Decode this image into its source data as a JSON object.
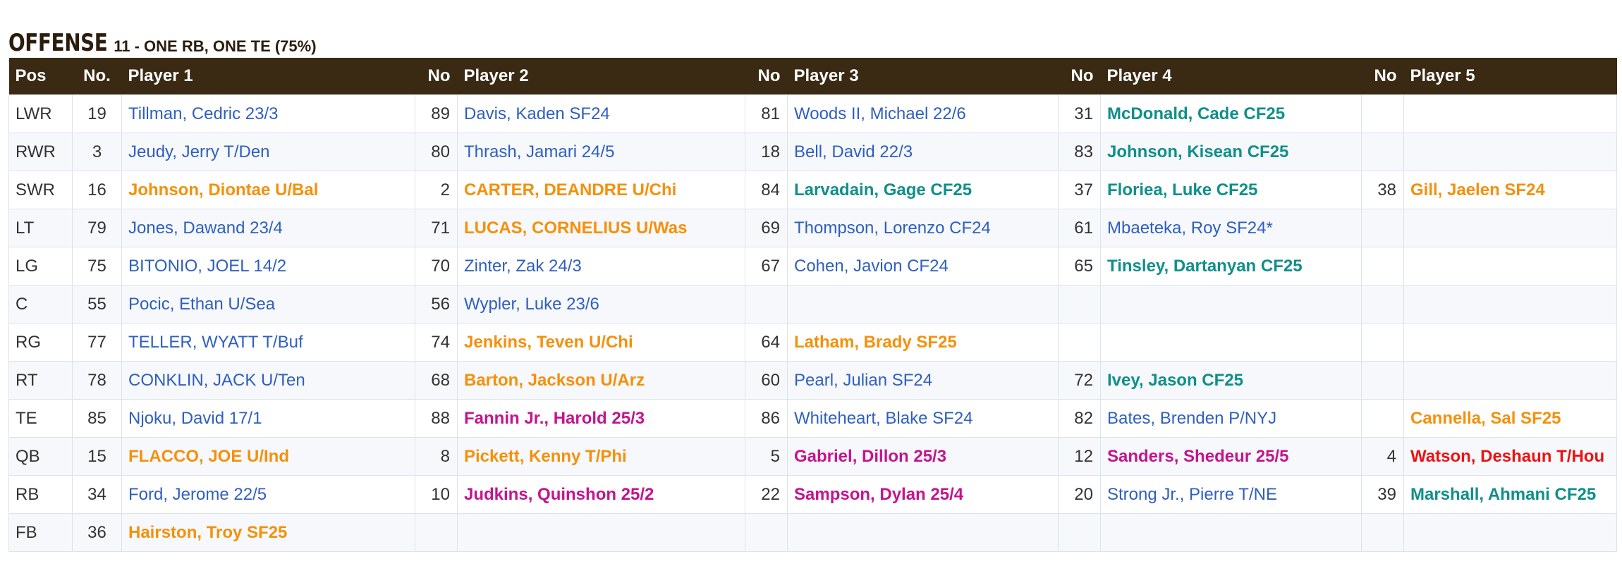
{
  "heading": {
    "title": "OFFENSE",
    "subtitle": "11 - ONE RB, ONE TE (75%)"
  },
  "colors": {
    "header_bg": "#3a2a14",
    "blue": "#2f5fbf",
    "orange": "#f5900a",
    "teal": "#0f8f8a",
    "magenta": "#c4148f",
    "red": "#ec1212"
  },
  "columns": [
    "Pos",
    "No.",
    "Player 1",
    "No",
    "Player 2",
    "No",
    "Player 3",
    "No",
    "Player 4",
    "No",
    "Player 5"
  ],
  "rows": [
    {
      "pos": "LWR",
      "players": [
        {
          "no": "19",
          "name": "Tillman, Cedric 23/3",
          "color": "blue"
        },
        {
          "no": "89",
          "name": "Davis, Kaden SF24",
          "color": "blue"
        },
        {
          "no": "81",
          "name": "Woods II, Michael 22/6",
          "color": "blue"
        },
        {
          "no": "31",
          "name": "McDonald, Cade CF25",
          "color": "teal"
        },
        {
          "no": "",
          "name": "",
          "color": "blue"
        }
      ]
    },
    {
      "pos": "RWR",
      "players": [
        {
          "no": "3",
          "name": "Jeudy, Jerry T/Den",
          "color": "blue"
        },
        {
          "no": "80",
          "name": "Thrash, Jamari 24/5",
          "color": "blue"
        },
        {
          "no": "18",
          "name": "Bell, David 22/3",
          "color": "blue"
        },
        {
          "no": "83",
          "name": "Johnson, Kisean CF25",
          "color": "teal"
        },
        {
          "no": "",
          "name": "",
          "color": "blue"
        }
      ]
    },
    {
      "pos": "SWR",
      "players": [
        {
          "no": "16",
          "name": "Johnson, Diontae U/Bal",
          "color": "orange"
        },
        {
          "no": "2",
          "name": "CARTER, DEANDRE U/Chi",
          "color": "orange"
        },
        {
          "no": "84",
          "name": "Larvadain, Gage CF25",
          "color": "teal"
        },
        {
          "no": "37",
          "name": "Floriea, Luke CF25",
          "color": "teal"
        },
        {
          "no": "38",
          "name": "Gill, Jaelen SF24",
          "color": "orange"
        }
      ]
    },
    {
      "pos": "LT",
      "players": [
        {
          "no": "79",
          "name": "Jones, Dawand 23/4",
          "color": "blue"
        },
        {
          "no": "71",
          "name": "LUCAS, CORNELIUS U/Was",
          "color": "orange"
        },
        {
          "no": "69",
          "name": "Thompson, Lorenzo CF24",
          "color": "blue"
        },
        {
          "no": "61",
          "name": "Mbaeteka, Roy SF24*",
          "color": "blue"
        },
        {
          "no": "",
          "name": "",
          "color": "blue"
        }
      ]
    },
    {
      "pos": "LG",
      "players": [
        {
          "no": "75",
          "name": "BITONIO, JOEL 14/2",
          "color": "blue"
        },
        {
          "no": "70",
          "name": "Zinter, Zak 24/3",
          "color": "blue"
        },
        {
          "no": "67",
          "name": "Cohen, Javion CF24",
          "color": "blue"
        },
        {
          "no": "65",
          "name": "Tinsley, Dartanyan CF25",
          "color": "teal"
        },
        {
          "no": "",
          "name": "",
          "color": "blue"
        }
      ]
    },
    {
      "pos": "C",
      "players": [
        {
          "no": "55",
          "name": "Pocic, Ethan U/Sea",
          "color": "blue"
        },
        {
          "no": "56",
          "name": "Wypler, Luke 23/6",
          "color": "blue"
        },
        {
          "no": "",
          "name": "",
          "color": "blue"
        },
        {
          "no": "",
          "name": "",
          "color": "blue"
        },
        {
          "no": "",
          "name": "",
          "color": "blue"
        }
      ]
    },
    {
      "pos": "RG",
      "players": [
        {
          "no": "77",
          "name": "TELLER, WYATT T/Buf",
          "color": "blue"
        },
        {
          "no": "74",
          "name": "Jenkins, Teven U/Chi",
          "color": "orange"
        },
        {
          "no": "64",
          "name": "Latham, Brady SF25",
          "color": "orange"
        },
        {
          "no": "",
          "name": "",
          "color": "blue"
        },
        {
          "no": "",
          "name": "",
          "color": "blue"
        }
      ]
    },
    {
      "pos": "RT",
      "players": [
        {
          "no": "78",
          "name": "CONKLIN, JACK U/Ten",
          "color": "blue"
        },
        {
          "no": "68",
          "name": "Barton, Jackson U/Arz",
          "color": "orange"
        },
        {
          "no": "60",
          "name": "Pearl, Julian SF24",
          "color": "blue"
        },
        {
          "no": "72",
          "name": "Ivey, Jason CF25",
          "color": "teal"
        },
        {
          "no": "",
          "name": "",
          "color": "blue"
        }
      ]
    },
    {
      "pos": "TE",
      "players": [
        {
          "no": "85",
          "name": "Njoku, David 17/1",
          "color": "blue"
        },
        {
          "no": "88",
          "name": "Fannin Jr., Harold 25/3",
          "color": "magenta"
        },
        {
          "no": "86",
          "name": "Whiteheart, Blake SF24",
          "color": "blue"
        },
        {
          "no": "82",
          "name": "Bates, Brenden P/NYJ",
          "color": "blue"
        },
        {
          "no": "",
          "name": "Cannella, Sal SF25",
          "color": "orange"
        }
      ]
    },
    {
      "pos": "QB",
      "players": [
        {
          "no": "15",
          "name": "FLACCO, JOE U/Ind",
          "color": "orange"
        },
        {
          "no": "8",
          "name": "Pickett, Kenny T/Phi",
          "color": "orange"
        },
        {
          "no": "5",
          "name": "Gabriel, Dillon 25/3",
          "color": "magenta"
        },
        {
          "no": "12",
          "name": "Sanders, Shedeur 25/5",
          "color": "magenta"
        },
        {
          "no": "4",
          "name": "Watson, Deshaun T/Hou",
          "color": "red"
        }
      ]
    },
    {
      "pos": "RB",
      "players": [
        {
          "no": "34",
          "name": "Ford, Jerome 22/5",
          "color": "blue"
        },
        {
          "no": "10",
          "name": "Judkins, Quinshon 25/2",
          "color": "magenta"
        },
        {
          "no": "22",
          "name": "Sampson, Dylan 25/4",
          "color": "magenta"
        },
        {
          "no": "20",
          "name": "Strong Jr., Pierre T/NE",
          "color": "blue"
        },
        {
          "no": "39",
          "name": "Marshall, Ahmani CF25",
          "color": "teal"
        }
      ]
    },
    {
      "pos": "FB",
      "players": [
        {
          "no": "36",
          "name": "Hairston, Troy SF25",
          "color": "orange"
        },
        {
          "no": "",
          "name": "",
          "color": "blue"
        },
        {
          "no": "",
          "name": "",
          "color": "blue"
        },
        {
          "no": "",
          "name": "",
          "color": "blue"
        },
        {
          "no": "",
          "name": "",
          "color": "blue"
        }
      ]
    }
  ]
}
